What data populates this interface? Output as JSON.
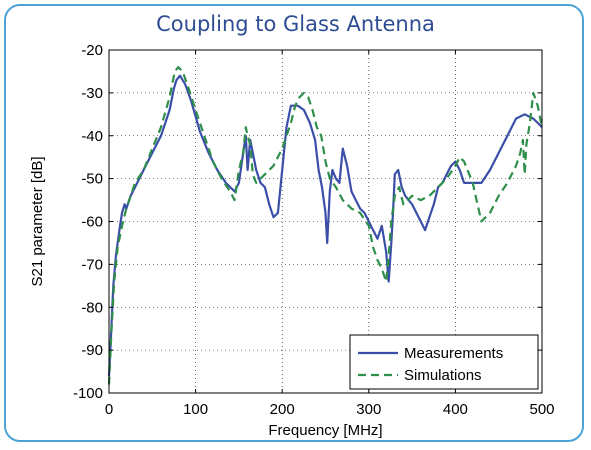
{
  "chart_data": {
    "type": "line",
    "title": "Coupling to Glass Antenna",
    "xlabel": "Frequency [MHz]",
    "ylabel": "S21 parameter [dB]",
    "xlim": [
      0,
      500
    ],
    "ylim": [
      -100,
      -20
    ],
    "xticks": [
      0,
      100,
      200,
      300,
      400,
      500
    ],
    "yticks": [
      -100,
      -90,
      -80,
      -70,
      -60,
      -50,
      -40,
      -30,
      -20
    ],
    "grid": true,
    "legend_position": "bottom-right",
    "series": [
      {
        "name": "Measurements",
        "color": "#3b4fa8",
        "style": "solid",
        "x": [
          0,
          2,
          5,
          8,
          12,
          15,
          18,
          20,
          25,
          30,
          40,
          50,
          60,
          70,
          75,
          78,
          82,
          88,
          95,
          105,
          115,
          125,
          135,
          145,
          150,
          155,
          158,
          160,
          163,
          166,
          170,
          175,
          180,
          185,
          190,
          195,
          200,
          205,
          210,
          218,
          225,
          232,
          238,
          242,
          246,
          250,
          252,
          255,
          258,
          262,
          266,
          270,
          275,
          280,
          285,
          290,
          295,
          300,
          305,
          310,
          315,
          320,
          323,
          326,
          328,
          330,
          334,
          338,
          342,
          346,
          350,
          355,
          360,
          365,
          370,
          375,
          380,
          385,
          390,
          395,
          400,
          405,
          410,
          420,
          430,
          440,
          450,
          460,
          470,
          480,
          490,
          495,
          500
        ],
        "y": [
          -96,
          -88,
          -75,
          -68,
          -62,
          -58,
          -56,
          -57,
          -54,
          -52,
          -48,
          -44,
          -40,
          -34,
          -29,
          -27,
          -26,
          -28,
          -32,
          -39,
          -44,
          -48,
          -51,
          -53,
          -51,
          -44,
          -40,
          -48,
          -41,
          -44,
          -48,
          -51,
          -52,
          -56,
          -59,
          -58,
          -48,
          -38,
          -33,
          -33,
          -34,
          -37,
          -41,
          -48,
          -52,
          -58,
          -65,
          -53,
          -48,
          -50,
          -51,
          -43,
          -47,
          -53,
          -55,
          -57,
          -58,
          -60,
          -62,
          -64,
          -61,
          -67,
          -74,
          -65,
          -58,
          -49,
          -48,
          -52,
          -54,
          -55,
          -56,
          -58,
          -60,
          -62,
          -59,
          -56,
          -52,
          -51,
          -49,
          -47,
          -46,
          -48,
          -51,
          -51,
          -51,
          -48,
          -44,
          -40,
          -36,
          -35,
          -36,
          -37,
          -38
        ]
      },
      {
        "name": "Simulations",
        "color": "#2e8f4a",
        "style": "dashed",
        "x": [
          0,
          3,
          6,
          10,
          15,
          20,
          25,
          30,
          40,
          50,
          60,
          70,
          76,
          80,
          85,
          92,
          100,
          110,
          120,
          130,
          140,
          145,
          150,
          155,
          158,
          160,
          163,
          166,
          170,
          175,
          180,
          185,
          190,
          200,
          210,
          215,
          220,
          225,
          230,
          235,
          240,
          245,
          250,
          255,
          262,
          270,
          280,
          290,
          300,
          305,
          310,
          315,
          320,
          323,
          326,
          330,
          335,
          340,
          345,
          350,
          360,
          370,
          380,
          390,
          400,
          405,
          410,
          420,
          430,
          440,
          450,
          460,
          470,
          475,
          478,
          480,
          482,
          486,
          490,
          495,
          500
        ],
        "y": [
          -98,
          -85,
          -74,
          -66,
          -61,
          -57,
          -54,
          -51,
          -48,
          -43,
          -38,
          -31,
          -25,
          -24,
          -25,
          -29,
          -34,
          -40,
          -46,
          -50,
          -53,
          -55,
          -48,
          -44,
          -38,
          -40,
          -42,
          -49,
          -51,
          -50,
          -49,
          -48,
          -47,
          -43,
          -37,
          -33,
          -31,
          -30,
          -31,
          -34,
          -38,
          -40,
          -46,
          -50,
          -52,
          -55,
          -57,
          -58,
          -61,
          -66,
          -69,
          -71,
          -74,
          -68,
          -60,
          -54,
          -52,
          -56,
          -55,
          -54,
          -55,
          -54,
          -52,
          -50,
          -47,
          -45,
          -46,
          -51,
          -60,
          -58,
          -54,
          -51,
          -47,
          -44,
          -41,
          -49,
          -42,
          -37,
          -30,
          -33,
          -38
        ]
      }
    ]
  }
}
